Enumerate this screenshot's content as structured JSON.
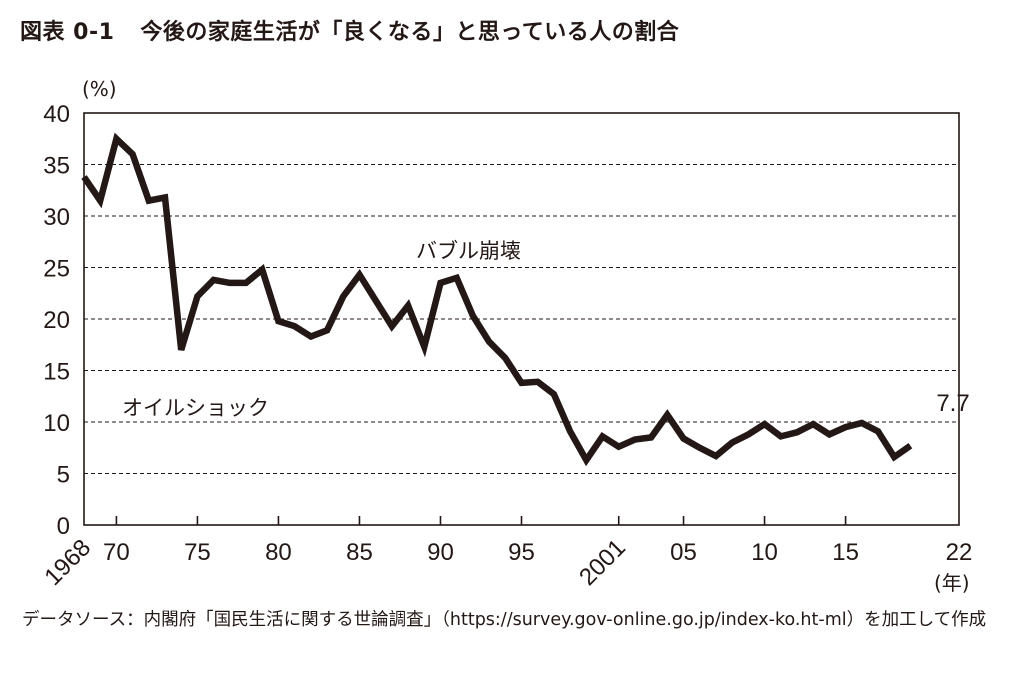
{
  "title": {
    "number": "図表 0-1",
    "text": "今後の家庭生活が「良くなる」と思っている人の割合"
  },
  "chart_data": {
    "type": "line",
    "ylabel": "(%)",
    "xlabel": "(年)",
    "ylim": [
      0,
      40
    ],
    "xlim": [
      1968,
      2022
    ],
    "y_ticks": [
      "0",
      "5",
      "10",
      "15",
      "20",
      "25",
      "30",
      "35",
      "40"
    ],
    "x_tick_labels": [
      {
        "year": 1968,
        "label": "1968",
        "rotated": true
      },
      {
        "year": 1970,
        "label": "70"
      },
      {
        "year": 1975,
        "label": "75"
      },
      {
        "year": 1980,
        "label": "80"
      },
      {
        "year": 1985,
        "label": "85"
      },
      {
        "year": 1990,
        "label": "90"
      },
      {
        "year": 1995,
        "label": "95"
      },
      {
        "year": 2001,
        "label": "2001",
        "rotated": true
      },
      {
        "year": 2005,
        "label": "05"
      },
      {
        "year": 2010,
        "label": "10"
      },
      {
        "year": 2015,
        "label": "15"
      },
      {
        "year": 2022,
        "label": "22"
      }
    ],
    "grid": "dashed horizontal",
    "series": [
      {
        "color": "#231815",
        "points": [
          [
            1968,
            33.8
          ],
          [
            1969,
            31.5
          ],
          [
            1970,
            37.5
          ],
          [
            1971,
            36.0
          ],
          [
            1972,
            31.5
          ],
          [
            1973,
            31.8
          ],
          [
            1974,
            17.0
          ],
          [
            1975,
            22.2
          ],
          [
            1976,
            23.8
          ],
          [
            1977,
            23.5
          ],
          [
            1978,
            23.5
          ],
          [
            1979,
            24.8
          ],
          [
            1980,
            19.8
          ],
          [
            1981,
            19.3
          ],
          [
            1982,
            18.3
          ],
          [
            1983,
            18.9
          ],
          [
            1984,
            22.2
          ],
          [
            1985,
            24.3
          ],
          [
            1986,
            21.8
          ],
          [
            1987,
            19.3
          ],
          [
            1988,
            21.3
          ],
          [
            1989,
            17.3
          ],
          [
            1990,
            23.5
          ],
          [
            1991,
            24.0
          ],
          [
            1992,
            20.3
          ],
          [
            1993,
            17.8
          ],
          [
            1994,
            16.2
          ],
          [
            1995,
            13.8
          ],
          [
            1996,
            13.9
          ],
          [
            1997,
            12.7
          ],
          [
            1998,
            9.1
          ],
          [
            1999,
            6.3
          ],
          [
            2000,
            8.6
          ],
          [
            2001,
            7.6
          ],
          [
            2002,
            8.3
          ],
          [
            2003,
            8.5
          ],
          [
            2004,
            10.7
          ],
          [
            2005,
            8.4
          ],
          [
            2006,
            7.5
          ],
          [
            2007,
            6.7
          ],
          [
            2008,
            8.0
          ],
          [
            2009,
            8.8
          ],
          [
            2010,
            9.8
          ],
          [
            2011,
            8.6
          ],
          [
            2012,
            9.0
          ],
          [
            2013,
            9.8
          ],
          [
            2014,
            8.8
          ],
          [
            2015,
            9.5
          ],
          [
            2016,
            9.9
          ],
          [
            2017,
            9.1
          ],
          [
            2018,
            6.6
          ],
          [
            2019,
            7.7
          ]
        ]
      }
    ],
    "annotations": [
      {
        "text": "オイルショック"
      },
      {
        "text": "バブル崩壊"
      },
      {
        "text": "7.7"
      }
    ]
  },
  "source": "データソース：内閣府「国民生活に関する世論調査」（https://survey.gov-online.go.jp/index-ko.ht-ml）を加工して作成"
}
